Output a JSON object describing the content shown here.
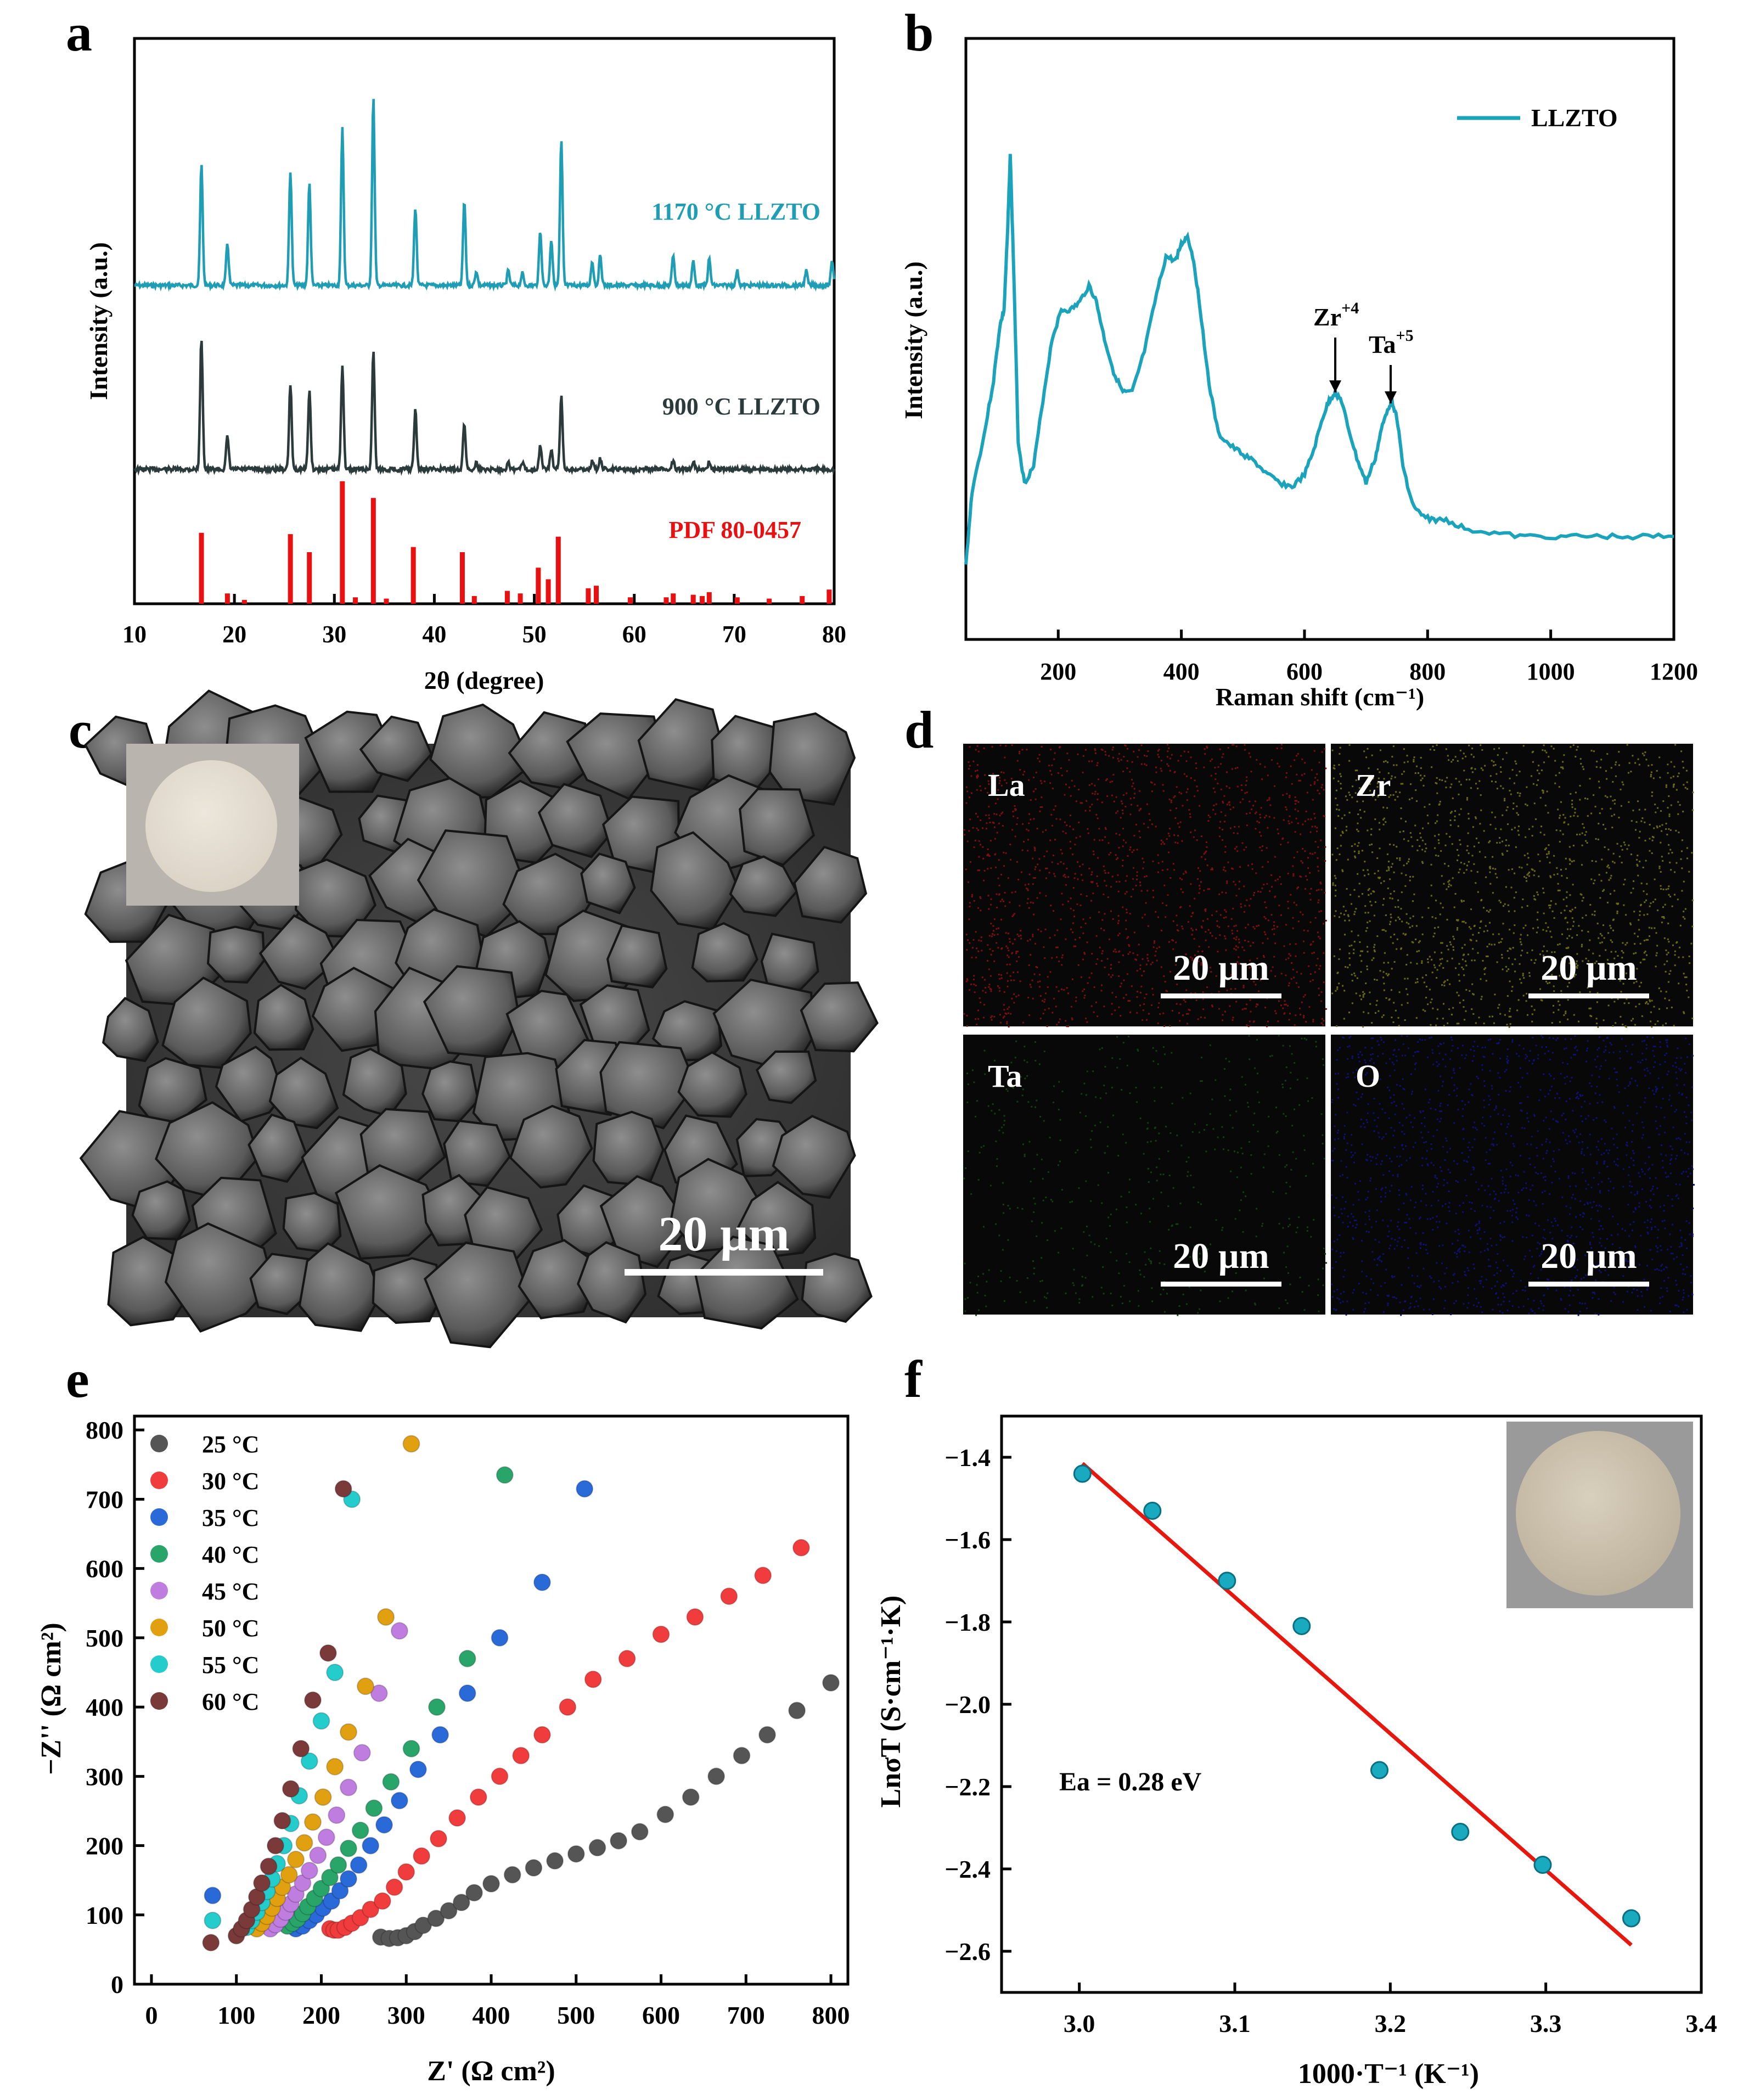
{
  "panels": {
    "a": {
      "letter": "a"
    },
    "b": {
      "letter": "b"
    },
    "c": {
      "letter": "c"
    },
    "d": {
      "letter": "d"
    },
    "e": {
      "letter": "e"
    },
    "f": {
      "letter": "f"
    }
  },
  "colors": {
    "xrd_1170": "#1f9db5",
    "xrd_900": "#2b3a3a",
    "pdf": "#e81010",
    "raman": "#1aa3bb",
    "fit_line": "#e8170e",
    "arrhenius_point": "#19aac0"
  },
  "chart_data": [
    {
      "panel": "a",
      "type": "line",
      "title": "",
      "xlabel": "2θ (degree)",
      "ylabel": "Intensity (a.u.)",
      "xlim": [
        10,
        80
      ],
      "xticks": [
        "10",
        "20",
        "30",
        "40",
        "50",
        "60",
        "70",
        "80"
      ],
      "series": [
        {
          "name": "1170 °C LLZTO",
          "peaks": [
            [
              16.7,
              1.0
            ],
            [
              19.3,
              0.35
            ],
            [
              25.6,
              0.95
            ],
            [
              27.5,
              0.85
            ],
            [
              30.8,
              1.3
            ],
            [
              33.9,
              1.55
            ],
            [
              38.1,
              0.65
            ],
            [
              43.0,
              0.7
            ],
            [
              44.2,
              0.12
            ],
            [
              47.4,
              0.12
            ],
            [
              48.8,
              0.1
            ],
            [
              50.6,
              0.45
            ],
            [
              51.7,
              0.38
            ],
            [
              52.7,
              1.2
            ],
            [
              55.8,
              0.2
            ],
            [
              56.6,
              0.25
            ],
            [
              63.9,
              0.25
            ],
            [
              65.9,
              0.2
            ],
            [
              67.5,
              0.22
            ],
            [
              70.3,
              0.12
            ],
            [
              77.2,
              0.12
            ],
            [
              79.8,
              0.2
            ]
          ]
        },
        {
          "name": "900 °C LLZTO",
          "peaks": [
            [
              16.7,
              1.0
            ],
            [
              19.3,
              0.25
            ],
            [
              25.6,
              0.65
            ],
            [
              27.5,
              0.6
            ],
            [
              30.8,
              0.8
            ],
            [
              33.9,
              0.9
            ],
            [
              38.1,
              0.45
            ],
            [
              43.0,
              0.35
            ],
            [
              44.2,
              0.05
            ],
            [
              47.4,
              0.06
            ],
            [
              48.8,
              0.05
            ],
            [
              50.6,
              0.18
            ],
            [
              51.7,
              0.15
            ],
            [
              52.7,
              0.55
            ],
            [
              55.8,
              0.06
            ],
            [
              56.6,
              0.08
            ],
            [
              63.9,
              0.07
            ],
            [
              65.9,
              0.06
            ],
            [
              67.5,
              0.06
            ]
          ]
        },
        {
          "name": "PDF 80-0457",
          "sticks": [
            [
              16.7,
              0.55
            ],
            [
              19.3,
              0.08
            ],
            [
              21.0,
              0.03
            ],
            [
              25.6,
              0.54
            ],
            [
              27.5,
              0.4
            ],
            [
              30.8,
              0.95
            ],
            [
              32.1,
              0.05
            ],
            [
              33.9,
              0.82
            ],
            [
              35.2,
              0.04
            ],
            [
              37.9,
              0.44
            ],
            [
              42.8,
              0.4
            ],
            [
              44.0,
              0.06
            ],
            [
              47.3,
              0.1
            ],
            [
              48.6,
              0.08
            ],
            [
              50.4,
              0.28
            ],
            [
              51.4,
              0.19
            ],
            [
              52.4,
              0.52
            ],
            [
              55.4,
              0.12
            ],
            [
              56.2,
              0.14
            ],
            [
              59.6,
              0.05
            ],
            [
              63.2,
              0.05
            ],
            [
              63.9,
              0.08
            ],
            [
              65.9,
              0.07
            ],
            [
              66.8,
              0.06
            ],
            [
              67.5,
              0.09
            ],
            [
              70.3,
              0.05
            ],
            [
              73.5,
              0.04
            ],
            [
              76.8,
              0.06
            ],
            [
              79.5,
              0.11
            ]
          ]
        }
      ]
    },
    {
      "panel": "b",
      "type": "line",
      "title": "",
      "xlabel": "Raman shift (cm⁻¹)",
      "ylabel": "Intensity (a.u.)",
      "xlim": [
        50,
        1200
      ],
      "xticks": [
        "200",
        "400",
        "600",
        "800",
        "1000",
        "1200"
      ],
      "legend": "LLZTO",
      "annotations": [
        {
          "text": "Zr",
          "sup": "+4",
          "x": 650
        },
        {
          "text": "Ta",
          "sup": "+5",
          "x": 740
        }
      ],
      "series": [
        {
          "name": "LLZTO",
          "x": [
            50,
            60,
            80,
            95,
            105,
            112,
            118,
            122,
            128,
            135,
            145,
            160,
            175,
            190,
            205,
            220,
            235,
            250,
            262,
            275,
            290,
            305,
            320,
            340,
            360,
            375,
            390,
            400,
            410,
            420,
            430,
            445,
            460,
            480,
            500,
            520,
            540,
            560,
            580,
            600,
            615,
            630,
            640,
            650,
            660,
            670,
            685,
            700,
            715,
            725,
            735,
            742,
            750,
            760,
            775,
            790,
            810,
            830,
            860,
            900,
            950,
            1000,
            1050,
            1100,
            1150,
            1200
          ],
          "y": [
            0.0,
            0.18,
            0.32,
            0.45,
            0.58,
            0.62,
            0.82,
            1.0,
            0.7,
            0.3,
            0.2,
            0.24,
            0.4,
            0.55,
            0.62,
            0.62,
            0.64,
            0.68,
            0.64,
            0.55,
            0.47,
            0.42,
            0.42,
            0.52,
            0.66,
            0.75,
            0.74,
            0.78,
            0.8,
            0.74,
            0.63,
            0.44,
            0.32,
            0.29,
            0.27,
            0.25,
            0.22,
            0.2,
            0.19,
            0.22,
            0.28,
            0.36,
            0.4,
            0.42,
            0.4,
            0.34,
            0.26,
            0.2,
            0.26,
            0.33,
            0.38,
            0.4,
            0.36,
            0.24,
            0.15,
            0.12,
            0.11,
            0.11,
            0.09,
            0.08,
            0.07,
            0.07,
            0.07,
            0.07,
            0.07,
            0.07
          ]
        }
      ]
    },
    {
      "panel": "e",
      "type": "scatter",
      "title": "",
      "xlabel": "Z' (Ω cm²)",
      "ylabel": "−Z'' (Ω cm²)",
      "xlim": [
        -20,
        820
      ],
      "ylim": [
        0,
        820
      ],
      "xticks": [
        "0",
        "100",
        "200",
        "300",
        "400",
        "500",
        "600",
        "700",
        "800"
      ],
      "yticks": [
        "0",
        "100",
        "200",
        "300",
        "400",
        "500",
        "600",
        "700",
        "800"
      ],
      "series": [
        {
          "name": "25 °C",
          "color": "#555555",
          "x": [
            270,
            280,
            290,
            300,
            310,
            320,
            335,
            350,
            365,
            380,
            400,
            425,
            450,
            475,
            500,
            525,
            550,
            575,
            605,
            635,
            665,
            695,
            725,
            760,
            800
          ],
          "y": [
            68,
            66,
            67,
            70,
            76,
            85,
            95,
            106,
            118,
            132,
            145,
            158,
            168,
            178,
            188,
            197,
            207,
            220,
            245,
            270,
            300,
            330,
            360,
            395,
            435
          ]
        },
        {
          "name": "30 °C",
          "color": "#f03c3c",
          "x": [
            210,
            215,
            220,
            228,
            236,
            246,
            258,
            272,
            286,
            300,
            318,
            338,
            360,
            385,
            410,
            435,
            460,
            490,
            520,
            560,
            600,
            640,
            680,
            720,
            765
          ],
          "y": [
            80,
            78,
            78,
            82,
            88,
            96,
            108,
            120,
            140,
            162,
            185,
            210,
            240,
            270,
            300,
            330,
            360,
            400,
            440,
            470,
            505,
            530,
            560,
            590,
            630
          ]
        },
        {
          "name": "35 °C",
          "color": "#2a6ad8",
          "x": [
            72,
            170,
            178,
            186,
            194,
            202,
            212,
            222,
            232,
            244,
            258,
            274,
            292,
            314,
            340,
            372,
            410,
            460,
            510
          ],
          "y": [
            128,
            80,
            84,
            92,
            100,
            110,
            120,
            135,
            152,
            172,
            200,
            230,
            265,
            310,
            360,
            420,
            500,
            580,
            715
          ]
        },
        {
          "name": "40 °C",
          "color": "#2aa56a",
          "x": [
            160,
            166,
            172,
            178,
            184,
            192,
            200,
            210,
            220,
            232,
            246,
            262,
            282,
            306,
            336,
            372,
            416
          ],
          "y": [
            84,
            88,
            94,
            102,
            112,
            124,
            138,
            154,
            172,
            196,
            222,
            254,
            292,
            340,
            400,
            470,
            735
          ]
        },
        {
          "name": "45 °C",
          "color": "#c07de0",
          "x": [
            140,
            146,
            152,
            158,
            164,
            170,
            178,
            186,
            196,
            206,
            218,
            232,
            248,
            268,
            292
          ],
          "y": [
            80,
            86,
            94,
            104,
            116,
            130,
            146,
            164,
            186,
            212,
            244,
            284,
            334,
            420,
            510
          ]
        },
        {
          "name": "50 °C",
          "color": "#e0a010",
          "x": [
            124,
            130,
            136,
            142,
            148,
            154,
            162,
            170,
            180,
            190,
            202,
            216,
            232,
            252,
            276,
            306
          ],
          "y": [
            80,
            88,
            98,
            110,
            124,
            140,
            158,
            180,
            204,
            234,
            270,
            314,
            364,
            430,
            530,
            780
          ]
        },
        {
          "name": "55 °C",
          "color": "#25cccc",
          "x": [
            72,
            112,
            118,
            124,
            130,
            136,
            142,
            148,
            156,
            164,
            174,
            186,
            200,
            216,
            236
          ],
          "y": [
            92,
            82,
            92,
            104,
            118,
            134,
            152,
            174,
            200,
            232,
            272,
            322,
            380,
            450,
            700
          ]
        },
        {
          "name": "60 °C",
          "color": "#7a3a3a",
          "x": [
            70,
            100,
            106,
            112,
            118,
            124,
            130,
            138,
            146,
            154,
            164,
            176,
            190,
            208,
            226
          ],
          "y": [
            60,
            70,
            80,
            92,
            108,
            126,
            146,
            170,
            200,
            236,
            282,
            340,
            410,
            478,
            715
          ]
        }
      ]
    },
    {
      "panel": "f",
      "type": "scatter",
      "title": "",
      "xlabel": "1000·T⁻¹ (K⁻¹)",
      "ylabel": "LnσT (S·cm⁻¹·K)",
      "xlim": [
        2.95,
        3.4
      ],
      "ylim": [
        -2.7,
        -1.3
      ],
      "xticks": [
        "3.0",
        "3.1",
        "3.2",
        "3.3",
        "3.4"
      ],
      "yticks": [
        "-1.4",
        "-1.6",
        "-1.8",
        "-2.0",
        "-2.2",
        "-2.4",
        "-2.6"
      ],
      "annotation": "Ea = 0.28 eV",
      "points": {
        "x": [
          3.002,
          3.047,
          3.095,
          3.143,
          3.193,
          3.245,
          3.298,
          3.355
        ],
        "y": [
          -1.44,
          -1.53,
          -1.7,
          -1.81,
          -2.16,
          -2.31,
          -2.39,
          -2.52
        ]
      },
      "fit": {
        "x": [
          3.002,
          3.355
        ],
        "y": [
          -1.415,
          -2.585
        ]
      }
    }
  ],
  "panel_c": {
    "scale_bar": "20 µm"
  },
  "panel_d": {
    "maps": [
      {
        "element": "La",
        "scale_bar": "20 µm",
        "color": "#7a1010"
      },
      {
        "element": "Zr",
        "scale_bar": "20 µm",
        "color": "#6a6a10"
      },
      {
        "element": "Ta",
        "scale_bar": "20 µm",
        "color": "#104010"
      },
      {
        "element": "O",
        "scale_bar": "20 µm",
        "color": "#101070"
      }
    ]
  }
}
